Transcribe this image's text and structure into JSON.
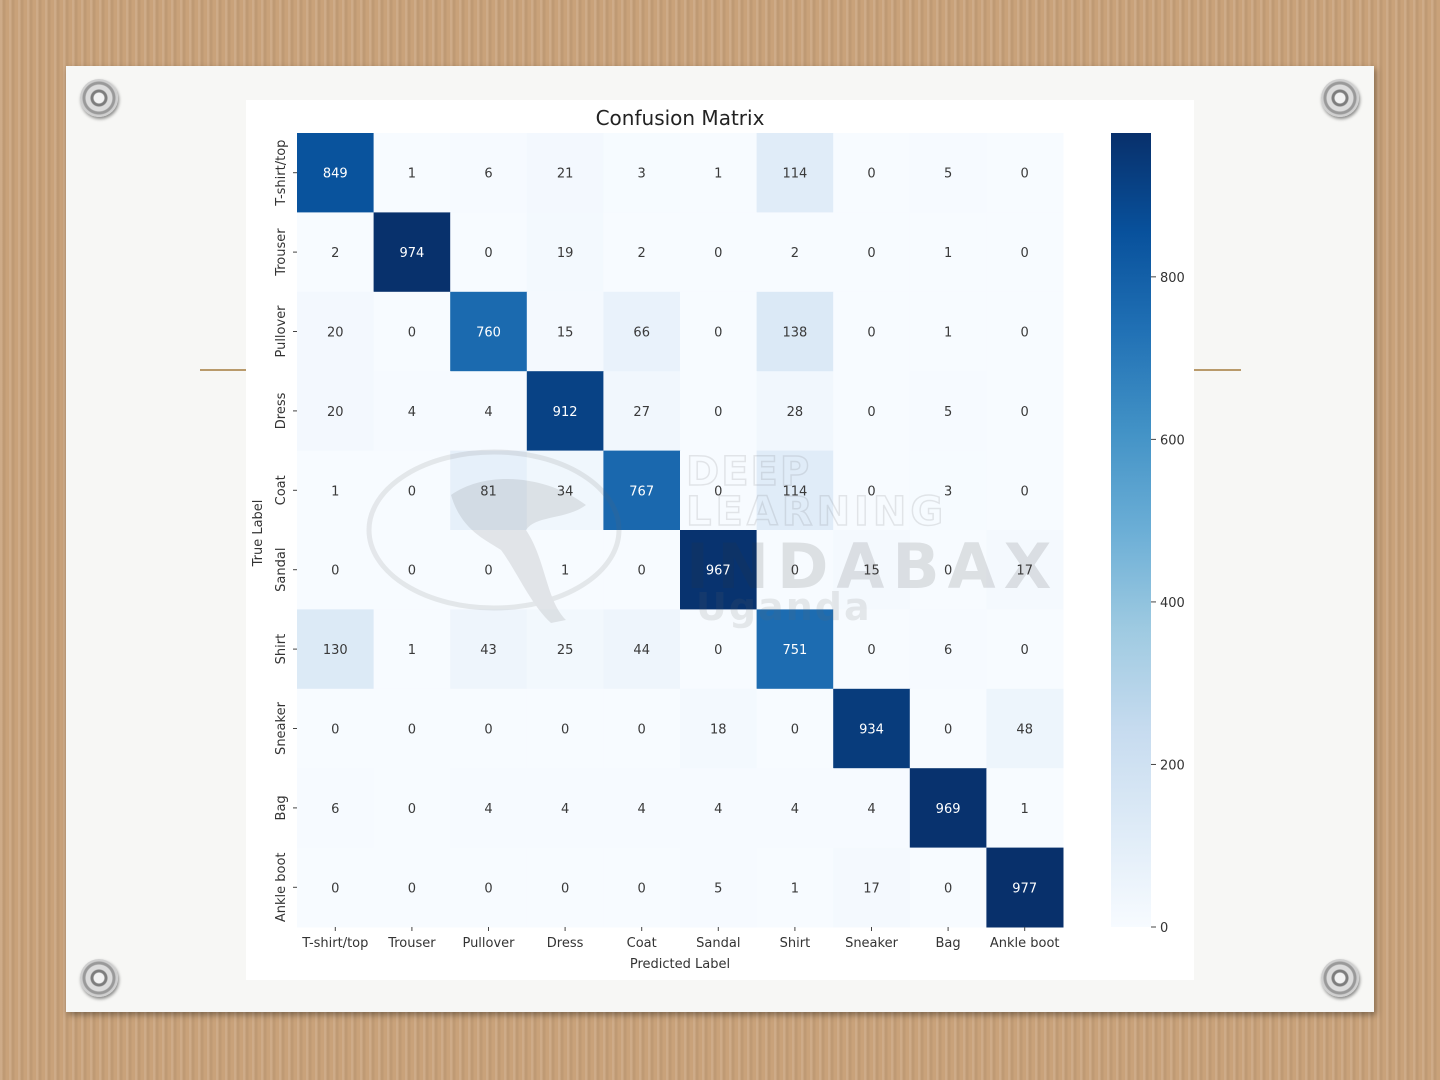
{
  "chart_data": {
    "type": "heatmap",
    "title": "Confusion Matrix",
    "xlabel": "Predicted Label",
    "ylabel": "True Label",
    "x_categories": [
      "T-shirt/top",
      "Trouser",
      "Pullover",
      "Dress",
      "Coat",
      "Sandal",
      "Shirt",
      "Sneaker",
      "Bag",
      "Ankle boot"
    ],
    "y_categories": [
      "T-shirt/top",
      "Trouser",
      "Pullover",
      "Dress",
      "Coat",
      "Sandal",
      "Shirt",
      "Sneaker",
      "Bag",
      "Ankle boot"
    ],
    "values": [
      [
        849,
        1,
        6,
        21,
        3,
        1,
        114,
        0,
        5,
        0
      ],
      [
        2,
        974,
        0,
        19,
        2,
        0,
        2,
        0,
        1,
        0
      ],
      [
        20,
        0,
        760,
        15,
        66,
        0,
        138,
        0,
        1,
        0
      ],
      [
        20,
        4,
        4,
        912,
        27,
        0,
        28,
        0,
        5,
        0
      ],
      [
        1,
        0,
        81,
        34,
        767,
        0,
        114,
        0,
        3,
        0
      ],
      [
        0,
        0,
        0,
        1,
        0,
        967,
        0,
        15,
        0,
        17
      ],
      [
        130,
        1,
        43,
        25,
        44,
        0,
        751,
        0,
        6,
        0
      ],
      [
        0,
        0,
        0,
        0,
        0,
        18,
        0,
        934,
        0,
        48
      ],
      [
        6,
        0,
        4,
        4,
        4,
        4,
        4,
        4,
        969,
        1
      ],
      [
        0,
        0,
        0,
        0,
        0,
        5,
        1,
        17,
        0,
        977
      ]
    ],
    "colorbar": {
      "ticks": [
        0,
        200,
        400,
        600,
        800
      ],
      "vmin": 0,
      "vmax": 977,
      "colormap": "Blues"
    }
  },
  "watermark": {
    "lines": [
      "DEEP",
      "LEARNING",
      "INDABAX",
      "Uganda"
    ]
  },
  "colors": {
    "background_wood": "#c9a27a",
    "card": "#f7f7f5",
    "accent_rule": "#b99a6b"
  }
}
